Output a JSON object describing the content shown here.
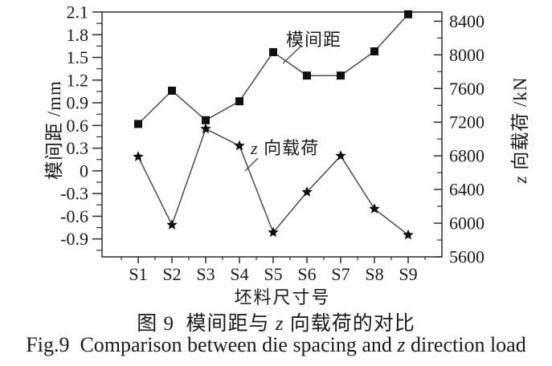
{
  "chart_data": {
    "type": "line",
    "dual_axis": true,
    "categories": [
      "S1",
      "S2",
      "S3",
      "S4",
      "S5",
      "S6",
      "S7",
      "S8",
      "S9"
    ],
    "series": [
      {
        "name": "模间距",
        "axis": "left",
        "marker": "square",
        "unit": "mm",
        "values": [
          0.62,
          1.06,
          0.67,
          0.92,
          1.57,
          1.26,
          1.26,
          1.58,
          2.07
        ]
      },
      {
        "name_italic": "z",
        "name": " 向载荷",
        "axis": "right",
        "marker": "star",
        "unit": "kN",
        "values": [
          6790,
          5980,
          7120,
          6920,
          5890,
          6370,
          6800,
          6170,
          5860
        ]
      }
    ],
    "left_axis": {
      "label": "模间距 /mm",
      "tick_labels": [
        "2.1",
        "1.8",
        "1.5",
        "1.2",
        "0.9",
        "0.6",
        "0.3",
        "0",
        "-0.3",
        "-0.6",
        "-0.9"
      ],
      "tick_max": 2.1,
      "tick_step": 0.3,
      "range": [
        -1.15,
        2.1
      ]
    },
    "right_axis": {
      "label_italic": "z",
      "label_rest": " 向载荷 /kN",
      "tick_labels": [
        "8400",
        "8000",
        "7600",
        "7200",
        "6800",
        "6400",
        "6000",
        "5600"
      ],
      "tick_max": 8400,
      "tick_step": 400,
      "range": [
        5600,
        8500
      ]
    },
    "x_axis": {
      "label": "坯料尺寸号"
    },
    "annotations": [
      {
        "text": "模间距"
      },
      {
        "italic": "z",
        "text": " 向载荷"
      }
    ],
    "caption_zh": {
      "pre": "图 9  模间距与 ",
      "italic": "z",
      "post": " 向载荷的对比"
    },
    "caption_en": {
      "pre": "Fig.9  Comparison between die spacing and ",
      "italic": "z",
      "post": " direction load"
    },
    "grid": false,
    "legend": "inline-annotations",
    "colors": {
      "line": "#4b4b4b",
      "marker": "#101010",
      "axis": "#2e2e2e",
      "text": "#1b1b1b",
      "background": "#ffffff"
    }
  }
}
